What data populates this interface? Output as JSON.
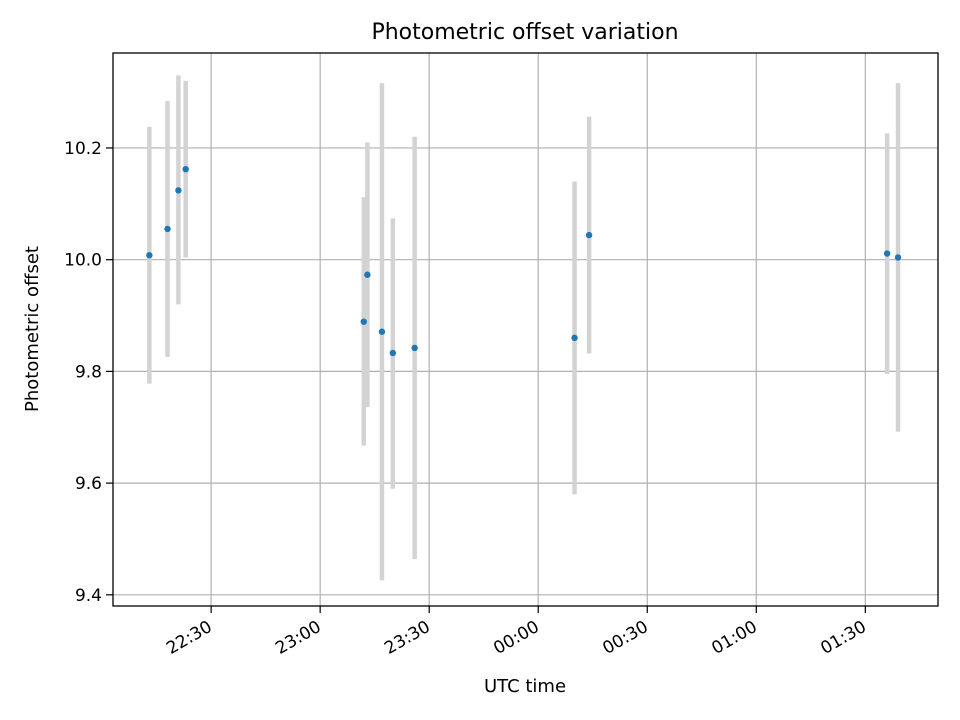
{
  "chart_data": {
    "type": "scatter",
    "title": "Photometric offset variation",
    "xlabel": "UTC time",
    "ylabel": "Photometric offset",
    "grid": true,
    "x_is_time": true,
    "xlim": [
      "22:03",
      "01:50"
    ],
    "ylim": [
      9.38,
      10.37
    ],
    "xticks": [
      "22:30",
      "23:00",
      "23:30",
      "00:00",
      "00:30",
      "01:00",
      "01:30"
    ],
    "yticks": [
      "9.4",
      "9.6",
      "9.8",
      "10.0",
      "10.2"
    ],
    "colors": {
      "point": "#1f77b4",
      "errorbar": "#d3d3d3",
      "grid": "#b0b0b0",
      "axes": "#000000"
    },
    "series": [
      {
        "points": [
          {
            "time": "22:13",
            "y": 10.008,
            "err_low": 9.778,
            "err_high": 10.238
          },
          {
            "time": "22:18",
            "y": 10.055,
            "err_low": 9.826,
            "err_high": 10.284
          },
          {
            "time": "22:21",
            "y": 10.124,
            "err_low": 9.92,
            "err_high": 10.33
          },
          {
            "time": "22:23",
            "y": 10.162,
            "err_low": 10.004,
            "err_high": 10.32
          },
          {
            "time": "23:12",
            "y": 9.889,
            "err_low": 9.667,
            "err_high": 10.112
          },
          {
            "time": "23:13",
            "y": 9.973,
            "err_low": 9.736,
            "err_high": 10.21
          },
          {
            "time": "23:17",
            "y": 9.871,
            "err_low": 9.426,
            "err_high": 10.316
          },
          {
            "time": "23:20",
            "y": 9.833,
            "err_low": 9.59,
            "err_high": 10.074
          },
          {
            "time": "23:26",
            "y": 9.842,
            "err_low": 9.464,
            "err_high": 10.22
          },
          {
            "time": "00:10",
            "y": 9.86,
            "err_low": 9.58,
            "err_high": 10.14
          },
          {
            "time": "00:14",
            "y": 10.044,
            "err_low": 9.832,
            "err_high": 10.256
          },
          {
            "time": "01:36",
            "y": 10.011,
            "err_low": 9.795,
            "err_high": 10.226
          },
          {
            "time": "01:39",
            "y": 10.004,
            "err_low": 9.692,
            "err_high": 10.316
          }
        ]
      }
    ]
  }
}
